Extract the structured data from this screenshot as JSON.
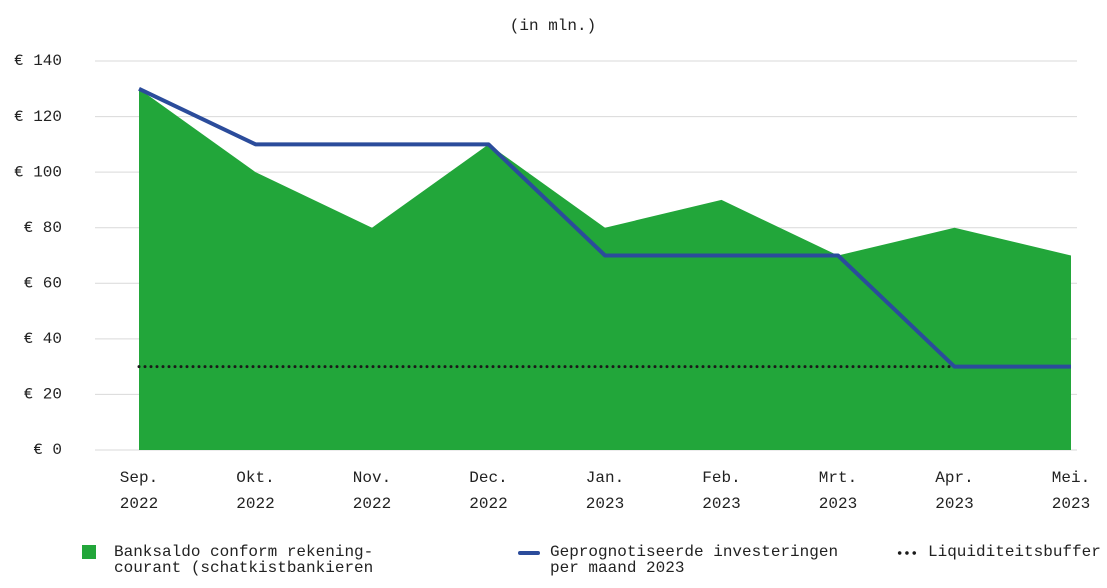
{
  "chart_data": {
    "type": "line",
    "subtitle": "(in mln.)",
    "categories": [
      [
        "Sep.",
        "2022"
      ],
      [
        "Okt.",
        "2022"
      ],
      [
        "Nov.",
        "2022"
      ],
      [
        "Dec.",
        "2022"
      ],
      [
        "Jan.",
        "2023"
      ],
      [
        "Feb.",
        "2023"
      ],
      [
        "Mrt.",
        "2023"
      ],
      [
        "Apr.",
        "2023"
      ],
      [
        "Mei.",
        "2023"
      ]
    ],
    "series": [
      {
        "name": "Banksaldo conform rekening-courant (schatkistbankieren",
        "type": "area",
        "color": "#22a63a",
        "values": [
          130,
          100,
          80,
          110,
          80,
          90,
          70,
          80,
          70
        ]
      },
      {
        "name": "Geprognotiseerde investeringen per maand 2023",
        "type": "line",
        "color": "#2b4c9b",
        "values": [
          130,
          110,
          110,
          110,
          70,
          70,
          70,
          30,
          30
        ]
      },
      {
        "name": "Liquiditeitsbuffer",
        "type": "dotted",
        "color": "#1a1a1a",
        "values": [
          30,
          30,
          30,
          30,
          30,
          30,
          30,
          30,
          null
        ]
      }
    ],
    "ylim": [
      0,
      140
    ],
    "yticks": [
      {
        "value": 0,
        "label": "€ 0"
      },
      {
        "value": 20,
        "label": "€ 20"
      },
      {
        "value": 40,
        "label": "€ 40"
      },
      {
        "value": 60,
        "label": "€ 60"
      },
      {
        "value": 80,
        "label": "€ 80"
      },
      {
        "value": 100,
        "label": "€ 100"
      },
      {
        "value": 120,
        "label": "€ 120"
      },
      {
        "value": 140,
        "label": "€ 140"
      }
    ],
    "grid": true,
    "legend": "bottom"
  }
}
